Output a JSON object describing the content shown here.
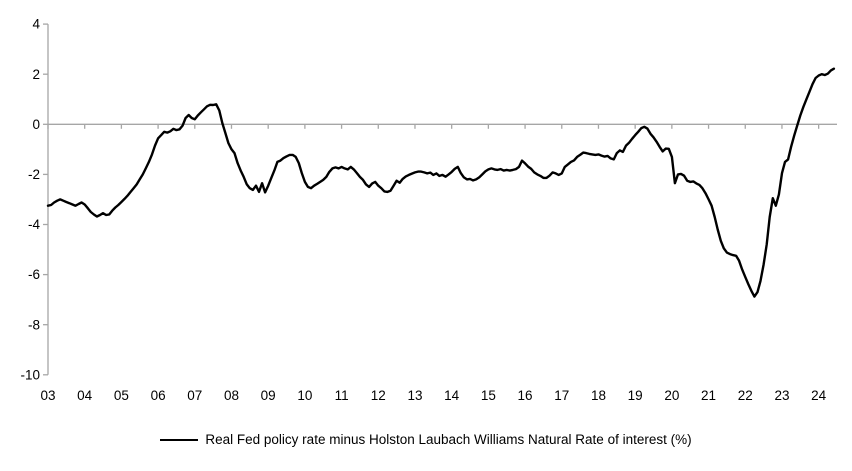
{
  "chart_data": {
    "type": "line",
    "title": "",
    "xlabel": "",
    "ylabel": "",
    "legend_position": "bottom",
    "grid": false,
    "zero_line": true,
    "background": "#ffffff",
    "axis_color": "#a6a6a6",
    "text_color": "#000000",
    "ylim": [
      -10,
      4
    ],
    "xlim": [
      2003.0,
      2024.5
    ],
    "y_ticks": [
      4,
      2,
      0,
      -2,
      -4,
      -6,
      -8,
      -10
    ],
    "y_tick_labels": [
      "4",
      "2",
      "0",
      "-2",
      "-4",
      "-6",
      "-8",
      "-10"
    ],
    "x_tick_years": [
      2003,
      2004,
      2005,
      2006,
      2007,
      2008,
      2009,
      2010,
      2011,
      2012,
      2013,
      2014,
      2015,
      2016,
      2017,
      2018,
      2019,
      2020,
      2021,
      2022,
      2023,
      2024
    ],
    "x_tick_labels": [
      "03",
      "04",
      "05",
      "06",
      "07",
      "08",
      "09",
      "10",
      "11",
      "12",
      "13",
      "14",
      "15",
      "16",
      "17",
      "18",
      "19",
      "20",
      "21",
      "22",
      "23",
      "24"
    ],
    "series": [
      {
        "name": "Real Fed policy rate minus Holston Laubach Williams Natural Rate of interest (%)",
        "color": "#000000",
        "x_start": 2003.0,
        "x_step": 0.08333,
        "values": [
          -3.25,
          -3.22,
          -3.12,
          -3.05,
          -3.0,
          -3.05,
          -3.1,
          -3.15,
          -3.2,
          -3.25,
          -3.18,
          -3.12,
          -3.2,
          -3.35,
          -3.5,
          -3.6,
          -3.68,
          -3.62,
          -3.55,
          -3.62,
          -3.6,
          -3.45,
          -3.32,
          -3.22,
          -3.1,
          -2.98,
          -2.85,
          -2.7,
          -2.55,
          -2.4,
          -2.2,
          -2.0,
          -1.75,
          -1.5,
          -1.2,
          -0.85,
          -0.56,
          -0.43,
          -0.3,
          -0.33,
          -0.28,
          -0.18,
          -0.23,
          -0.2,
          -0.05,
          0.25,
          0.37,
          0.25,
          0.2,
          0.35,
          0.48,
          0.6,
          0.72,
          0.78,
          0.77,
          0.8,
          0.55,
          0.05,
          -0.35,
          -0.75,
          -1.0,
          -1.15,
          -1.55,
          -1.85,
          -2.1,
          -2.4,
          -2.55,
          -2.62,
          -2.45,
          -2.7,
          -2.35,
          -2.72,
          -2.45,
          -2.15,
          -1.85,
          -1.5,
          -1.45,
          -1.35,
          -1.28,
          -1.22,
          -1.22,
          -1.3,
          -1.55,
          -1.95,
          -2.3,
          -2.5,
          -2.55,
          -2.45,
          -2.38,
          -2.3,
          -2.22,
          -2.1,
          -1.9,
          -1.76,
          -1.72,
          -1.76,
          -1.7,
          -1.76,
          -1.8,
          -1.7,
          -1.8,
          -1.95,
          -2.1,
          -2.22,
          -2.4,
          -2.5,
          -2.36,
          -2.3,
          -2.45,
          -2.55,
          -2.68,
          -2.7,
          -2.65,
          -2.45,
          -2.25,
          -2.33,
          -2.18,
          -2.08,
          -2.02,
          -1.97,
          -1.92,
          -1.89,
          -1.89,
          -1.92,
          -1.96,
          -1.93,
          -2.02,
          -1.96,
          -2.06,
          -2.02,
          -2.09,
          -2.0,
          -1.9,
          -1.78,
          -1.7,
          -1.95,
          -2.12,
          -2.2,
          -2.18,
          -2.24,
          -2.2,
          -2.12,
          -2.0,
          -1.88,
          -1.8,
          -1.76,
          -1.8,
          -1.82,
          -1.79,
          -1.85,
          -1.82,
          -1.85,
          -1.82,
          -1.79,
          -1.7,
          -1.45,
          -1.56,
          -1.69,
          -1.78,
          -1.92,
          -2.0,
          -2.06,
          -2.14,
          -2.14,
          -2.05,
          -1.92,
          -1.96,
          -2.02,
          -1.96,
          -1.7,
          -1.6,
          -1.5,
          -1.44,
          -1.3,
          -1.22,
          -1.13,
          -1.15,
          -1.18,
          -1.2,
          -1.22,
          -1.2,
          -1.25,
          -1.29,
          -1.26,
          -1.36,
          -1.4,
          -1.15,
          -1.04,
          -1.1,
          -0.85,
          -0.74,
          -0.58,
          -0.43,
          -0.3,
          -0.15,
          -0.1,
          -0.17,
          -0.38,
          -0.52,
          -0.7,
          -0.9,
          -1.08,
          -0.97,
          -0.98,
          -1.3,
          -2.35,
          -2.0,
          -1.98,
          -2.05,
          -2.25,
          -2.3,
          -2.28,
          -2.36,
          -2.42,
          -2.55,
          -2.75,
          -3.0,
          -3.25,
          -3.7,
          -4.2,
          -4.65,
          -4.95,
          -5.12,
          -5.18,
          -5.22,
          -5.25,
          -5.45,
          -5.8,
          -6.1,
          -6.38,
          -6.65,
          -6.88,
          -6.7,
          -6.25,
          -5.6,
          -4.8,
          -3.7,
          -2.95,
          -3.25,
          -2.8,
          -1.95,
          -1.5,
          -1.4,
          -0.9,
          -0.45,
          -0.05,
          0.35,
          0.7,
          1.0,
          1.3,
          1.6,
          1.85,
          1.95,
          2.0,
          1.97,
          2.02,
          2.15,
          2.22
        ]
      }
    ]
  }
}
